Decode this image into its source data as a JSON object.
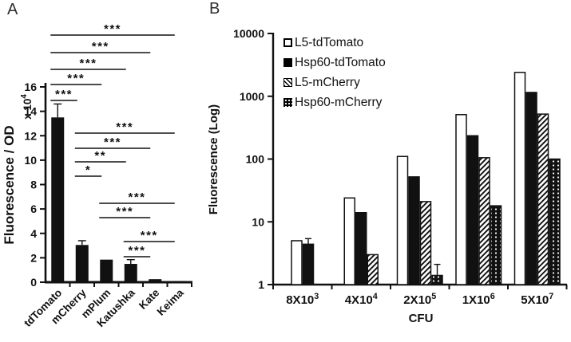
{
  "figure_labels": {
    "panel_a": "A",
    "panel_b": "B"
  },
  "colors": {
    "ink": "#111111",
    "background": "#ffffff"
  },
  "chart_data": [
    {
      "panel": "A",
      "type": "bar",
      "ylabel": "Fluorescence / OD",
      "y_multiplier": {
        "base": "x 10",
        "exp": "4"
      },
      "ylim": [
        0,
        16
      ],
      "yticks": [
        0,
        2,
        4,
        6,
        8,
        10,
        12,
        14,
        16
      ],
      "categories": [
        "tdTomato",
        "mCherry",
        "mPlum",
        "Katushka",
        "Kate",
        "Keima"
      ],
      "values": [
        13.5,
        3.05,
        1.85,
        1.5,
        0.25,
        0.1
      ],
      "errors": [
        1.1,
        0.35,
        0,
        0.35,
        0,
        0
      ],
      "significance": [
        {
          "from": "tdTomato",
          "to": "Keima",
          "stars": "***"
        },
        {
          "from": "tdTomato",
          "to": "Kate",
          "stars": "***"
        },
        {
          "from": "tdTomato",
          "to": "Katushka",
          "stars": "***"
        },
        {
          "from": "tdTomato",
          "to": "mPlum",
          "stars": "***"
        },
        {
          "from": "tdTomato",
          "to": "mCherry",
          "stars": "***"
        },
        {
          "from": "mCherry",
          "to": "Keima",
          "stars": "***"
        },
        {
          "from": "mCherry",
          "to": "Kate",
          "stars": "***"
        },
        {
          "from": "mCherry",
          "to": "Katushka",
          "stars": "**"
        },
        {
          "from": "mCherry",
          "to": "mPlum",
          "stars": "*"
        },
        {
          "from": "mPlum",
          "to": "Keima",
          "stars": "***"
        },
        {
          "from": "mPlum",
          "to": "Kate",
          "stars": "***"
        },
        {
          "from": "Katushka",
          "to": "Keima",
          "stars": "***"
        },
        {
          "from": "Katushka",
          "to": "Kate",
          "stars": "***"
        }
      ]
    },
    {
      "panel": "B",
      "type": "bar",
      "yscale": "log",
      "ylabel": "Fluorescence (Log)",
      "xlabel": "CFU",
      "ylim": [
        1,
        10000
      ],
      "yticks": [
        1,
        10,
        100,
        1000,
        10000
      ],
      "categories": [
        {
          "base": "8X10",
          "exp": "3"
        },
        {
          "base": "4X10",
          "exp": "4"
        },
        {
          "base": "2X10",
          "exp": "5"
        },
        {
          "base": "1X10",
          "exp": "6"
        },
        {
          "base": "5X10",
          "exp": "7"
        }
      ],
      "legend_position": "top-left",
      "series": [
        {
          "name": "L5-tdTomato",
          "pattern": "open",
          "values": [
            5,
            24,
            110,
            510,
            2400
          ],
          "errors": [
            0,
            0,
            0,
            0,
            0
          ]
        },
        {
          "name": "Hsp60-tdTomato",
          "pattern": "solid",
          "values": [
            4.4,
            14,
            52,
            235,
            1150
          ],
          "errors": [
            1.0,
            0,
            0,
            0,
            0
          ]
        },
        {
          "name": "L5-mCherry",
          "pattern": "hatch",
          "values": [
            null,
            3,
            21,
            105,
            520
          ],
          "errors": [
            0,
            0,
            0,
            0,
            0
          ]
        },
        {
          "name": "Hsp60-mCherry",
          "pattern": "dots",
          "values": [
            null,
            null,
            1.4,
            18,
            100
          ],
          "errors": [
            0,
            0,
            0.7,
            0,
            0
          ]
        }
      ]
    }
  ]
}
